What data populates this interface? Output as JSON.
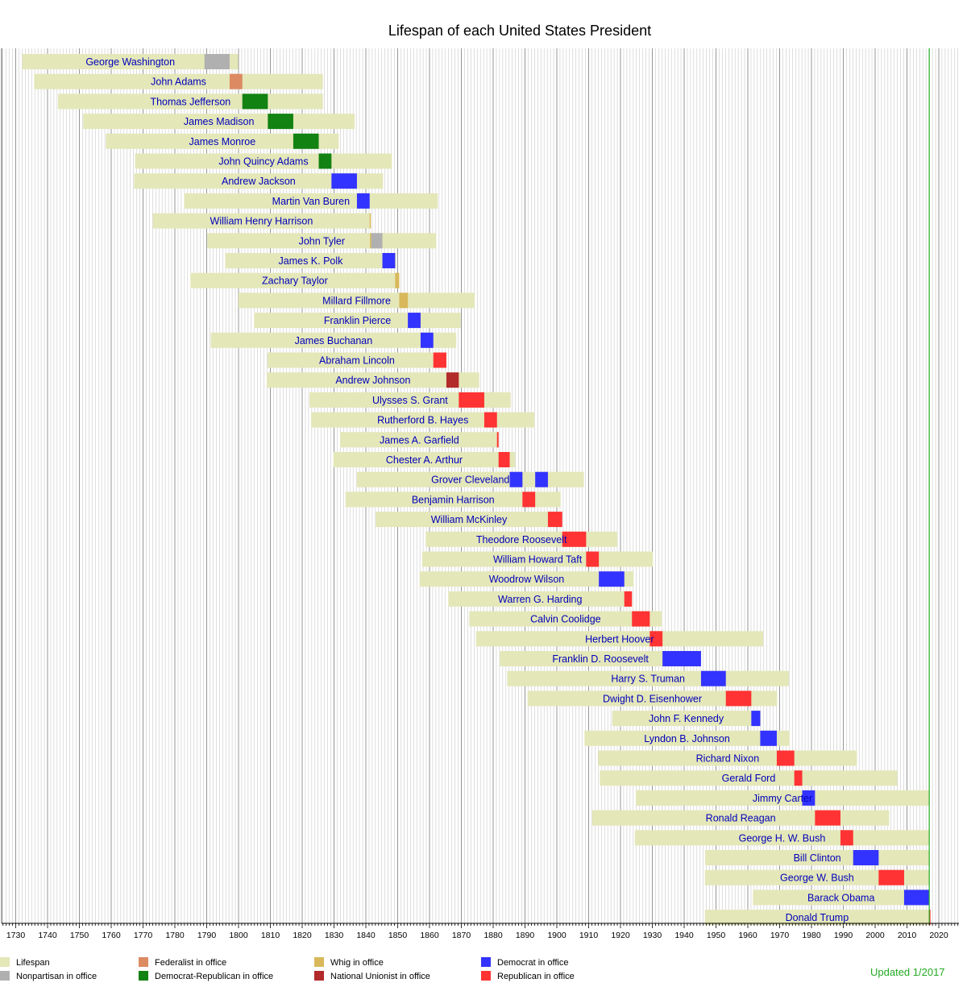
{
  "chart_data": {
    "type": "timeline",
    "title": "Lifespan of each United States President",
    "xlim": [
      1730,
      2020
    ],
    "ticks": [
      1730,
      1740,
      1750,
      1760,
      1770,
      1780,
      1790,
      1800,
      1810,
      1820,
      1830,
      1840,
      1850,
      1860,
      1870,
      1880,
      1890,
      1900,
      1910,
      1920,
      1930,
      1940,
      1950,
      1960,
      1970,
      1980,
      1990,
      2000,
      2010,
      2020
    ],
    "current_year_line": 2017,
    "grid": true,
    "legend": [
      {
        "key": "lifespan",
        "label": "Lifespan",
        "color": "#e4e7b8"
      },
      {
        "key": "nonpartisan",
        "label": "Nonpartisan in office",
        "color": "#b0b0b0"
      },
      {
        "key": "federalist",
        "label": "Federalist in office",
        "color": "#dc8a62"
      },
      {
        "key": "democratic_republican",
        "label": "Democrat-Republican in office",
        "color": "#128212"
      },
      {
        "key": "whig",
        "label": "Whig in office",
        "color": "#d8b85a"
      },
      {
        "key": "national_union",
        "label": "National Unionist in office",
        "color": "#b22a2a"
      },
      {
        "key": "democrat",
        "label": "Democrat in office",
        "color": "#3333ff"
      },
      {
        "key": "republican",
        "label": "Republican in office",
        "color": "#ff3333"
      }
    ],
    "presidents": [
      {
        "name": "George Washington",
        "born": 1732.1,
        "died": 1799.9,
        "terms": [
          [
            1789.3,
            1797.2,
            "nonpartisan"
          ]
        ]
      },
      {
        "name": "John Adams",
        "born": 1735.8,
        "died": 1826.5,
        "terms": [
          [
            1797.2,
            1801.2,
            "federalist"
          ]
        ]
      },
      {
        "name": "Thomas Jefferson",
        "born": 1743.3,
        "died": 1826.5,
        "terms": [
          [
            1801.2,
            1809.2,
            "democratic_republican"
          ]
        ]
      },
      {
        "name": "James Madison",
        "born": 1751.2,
        "died": 1836.5,
        "terms": [
          [
            1809.2,
            1817.2,
            "democratic_republican"
          ]
        ]
      },
      {
        "name": "James Monroe",
        "born": 1758.3,
        "died": 1831.5,
        "terms": [
          [
            1817.2,
            1825.2,
            "democratic_republican"
          ]
        ]
      },
      {
        "name": "John Quincy Adams",
        "born": 1767.5,
        "died": 1848.2,
        "terms": [
          [
            1825.2,
            1829.2,
            "democratic_republican"
          ]
        ]
      },
      {
        "name": "Andrew Jackson",
        "born": 1767.2,
        "died": 1845.4,
        "terms": [
          [
            1829.2,
            1837.2,
            "democrat"
          ]
        ]
      },
      {
        "name": "Martin Van Buren",
        "born": 1782.9,
        "died": 1862.6,
        "terms": [
          [
            1837.2,
            1841.2,
            "democrat"
          ]
        ]
      },
      {
        "name": "William Henry Harrison",
        "born": 1773.1,
        "died": 1841.3,
        "terms": [
          [
            1841.2,
            1841.3,
            "whig"
          ]
        ]
      },
      {
        "name": "John Tyler",
        "born": 1790.2,
        "died": 1862.1,
        "terms": [
          [
            1841.3,
            1841.7,
            "whig"
          ],
          [
            1841.7,
            1845.2,
            "nonpartisan"
          ]
        ]
      },
      {
        "name": "James K. Polk",
        "born": 1795.8,
        "died": 1849.5,
        "terms": [
          [
            1845.2,
            1849.2,
            "democrat"
          ]
        ]
      },
      {
        "name": "Zachary Taylor",
        "born": 1784.9,
        "died": 1850.5,
        "terms": [
          [
            1849.2,
            1850.5,
            "whig"
          ]
        ]
      },
      {
        "name": "Millard Fillmore",
        "born": 1800.0,
        "died": 1874.2,
        "terms": [
          [
            1850.5,
            1853.2,
            "whig"
          ]
        ]
      },
      {
        "name": "Franklin Pierce",
        "born": 1804.9,
        "died": 1869.8,
        "terms": [
          [
            1853.2,
            1857.2,
            "democrat"
          ]
        ]
      },
      {
        "name": "James Buchanan",
        "born": 1791.3,
        "died": 1868.4,
        "terms": [
          [
            1857.2,
            1861.2,
            "democrat"
          ]
        ]
      },
      {
        "name": "Abraham Lincoln",
        "born": 1809.1,
        "died": 1865.3,
        "terms": [
          [
            1861.2,
            1865.3,
            "republican"
          ]
        ]
      },
      {
        "name": "Andrew Johnson",
        "born": 1808.9,
        "died": 1875.6,
        "terms": [
          [
            1865.3,
            1869.2,
            "national_union"
          ]
        ]
      },
      {
        "name": "Ulysses S. Grant",
        "born": 1822.3,
        "died": 1885.5,
        "terms": [
          [
            1869.2,
            1877.2,
            "republican"
          ]
        ]
      },
      {
        "name": "Rutherford B. Hayes",
        "born": 1822.8,
        "died": 1893.0,
        "terms": [
          [
            1877.2,
            1881.2,
            "republican"
          ]
        ]
      },
      {
        "name": "James A. Garfield",
        "born": 1831.9,
        "died": 1881.7,
        "terms": [
          [
            1881.2,
            1881.7,
            "republican"
          ]
        ]
      },
      {
        "name": "Chester A. Arthur",
        "born": 1829.8,
        "died": 1886.9,
        "terms": [
          [
            1881.7,
            1885.2,
            "republican"
          ]
        ]
      },
      {
        "name": "Grover Cleveland",
        "born": 1837.2,
        "died": 1908.5,
        "terms": [
          [
            1885.2,
            1889.2,
            "democrat"
          ],
          [
            1893.2,
            1897.2,
            "democrat"
          ]
        ]
      },
      {
        "name": "Benjamin Harrison",
        "born": 1833.6,
        "died": 1901.2,
        "terms": [
          [
            1889.2,
            1893.2,
            "republican"
          ]
        ]
      },
      {
        "name": "William McKinley",
        "born": 1843.1,
        "died": 1901.7,
        "terms": [
          [
            1897.2,
            1901.7,
            "republican"
          ]
        ]
      },
      {
        "name": "Theodore Roosevelt",
        "born": 1858.8,
        "died": 1919.0,
        "terms": [
          [
            1901.7,
            1909.2,
            "republican"
          ]
        ]
      },
      {
        "name": "William Howard Taft",
        "born": 1857.7,
        "died": 1930.2,
        "terms": [
          [
            1909.2,
            1913.2,
            "republican"
          ]
        ]
      },
      {
        "name": "Woodrow Wilson",
        "born": 1856.9,
        "died": 1924.1,
        "terms": [
          [
            1913.2,
            1921.2,
            "democrat"
          ]
        ]
      },
      {
        "name": "Warren G. Harding",
        "born": 1865.9,
        "died": 1923.6,
        "terms": [
          [
            1921.2,
            1923.6,
            "republican"
          ]
        ]
      },
      {
        "name": "Calvin Coolidge",
        "born": 1872.5,
        "died": 1933.0,
        "terms": [
          [
            1923.6,
            1929.2,
            "republican"
          ]
        ]
      },
      {
        "name": "Herbert Hoover",
        "born": 1874.6,
        "died": 1964.8,
        "terms": [
          [
            1929.2,
            1933.2,
            "republican"
          ]
        ]
      },
      {
        "name": "Franklin D. Roosevelt",
        "born": 1882.1,
        "died": 1945.3,
        "terms": [
          [
            1933.2,
            1945.3,
            "democrat"
          ]
        ]
      },
      {
        "name": "Harry S. Truman",
        "born": 1884.4,
        "died": 1972.9,
        "terms": [
          [
            1945.3,
            1953.1,
            "democrat"
          ]
        ]
      },
      {
        "name": "Dwight D. Eisenhower",
        "born": 1890.8,
        "died": 1969.2,
        "terms": [
          [
            1953.1,
            1961.1,
            "republican"
          ]
        ]
      },
      {
        "name": "John F. Kennedy",
        "born": 1917.4,
        "died": 1963.9,
        "terms": [
          [
            1961.1,
            1963.9,
            "democrat"
          ]
        ]
      },
      {
        "name": "Lyndon B. Johnson",
        "born": 1908.7,
        "died": 1973.1,
        "terms": [
          [
            1963.9,
            1969.1,
            "democrat"
          ]
        ]
      },
      {
        "name": "Richard Nixon",
        "born": 1913.0,
        "died": 1994.3,
        "terms": [
          [
            1969.1,
            1974.6,
            "republican"
          ]
        ]
      },
      {
        "name": "Gerald Ford",
        "born": 1913.5,
        "died": 2006.98,
        "terms": [
          [
            1974.6,
            1977.1,
            "republican"
          ]
        ]
      },
      {
        "name": "Jimmy Carter",
        "born": 1924.8,
        "died": 2017.0,
        "terms": [
          [
            1977.1,
            1981.1,
            "democrat"
          ]
        ]
      },
      {
        "name": "Ronald Reagan",
        "born": 1911.1,
        "died": 2004.4,
        "terms": [
          [
            1981.1,
            1989.1,
            "republican"
          ]
        ]
      },
      {
        "name": "George H. W. Bush",
        "born": 1924.5,
        "died": 2017.0,
        "terms": [
          [
            1989.1,
            1993.1,
            "republican"
          ]
        ]
      },
      {
        "name": "Bill Clinton",
        "born": 1946.6,
        "died": 2017.0,
        "terms": [
          [
            1993.1,
            2001.1,
            "democrat"
          ]
        ]
      },
      {
        "name": "George W. Bush",
        "born": 1946.5,
        "died": 2017.0,
        "terms": [
          [
            2001.1,
            2009.1,
            "republican"
          ]
        ]
      },
      {
        "name": "Barack Obama",
        "born": 1961.6,
        "died": 2017.0,
        "terms": [
          [
            2009.1,
            2017.0,
            "democrat"
          ]
        ]
      },
      {
        "name": "Donald Trump",
        "born": 1946.5,
        "died": 2017.0,
        "terms": [
          [
            2017.0,
            2017.1,
            "republican"
          ]
        ]
      }
    ]
  },
  "footer": {
    "updated_label": "Updated 1/2017"
  }
}
